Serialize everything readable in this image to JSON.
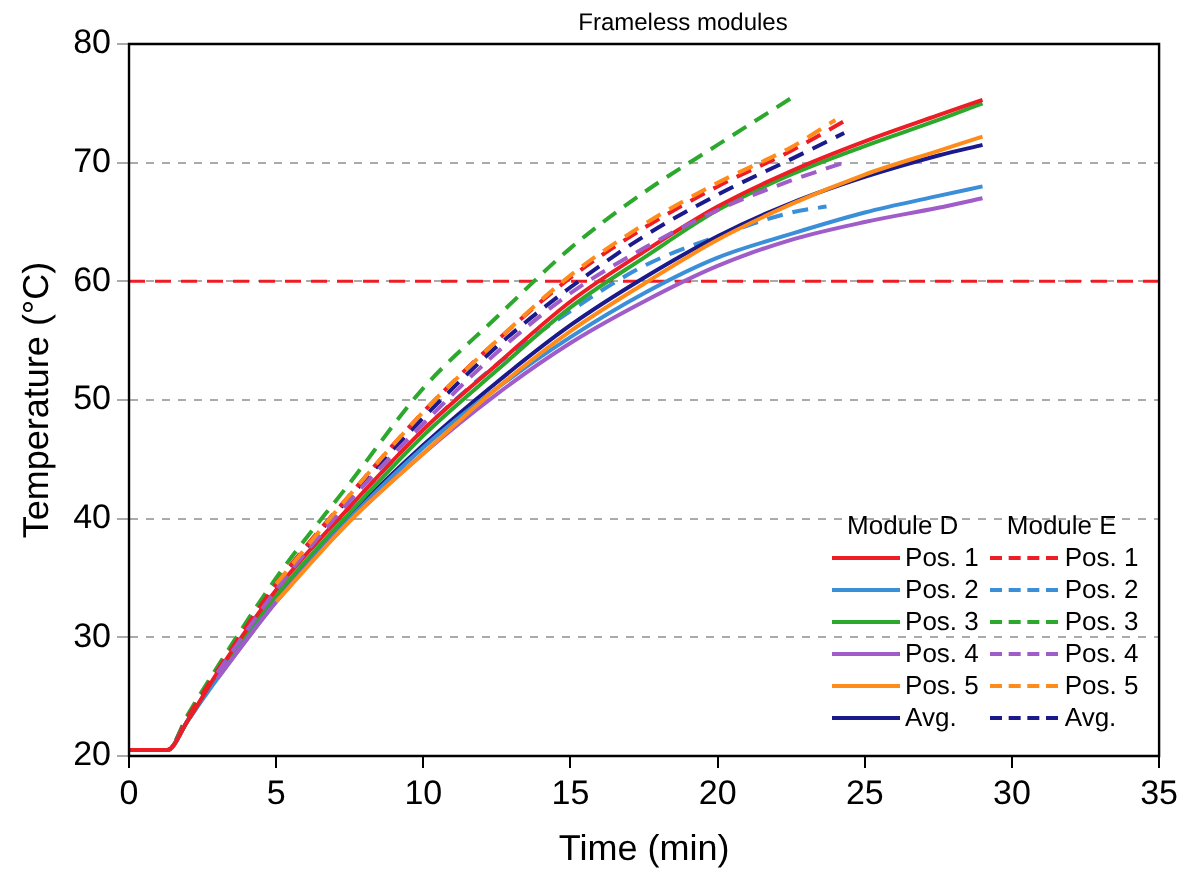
{
  "chart_data": {
    "type": "line",
    "title": "Frameless modules",
    "xlabel": "Time (min)",
    "ylabel": "Temperature (°C)",
    "xlim": [
      0,
      35
    ],
    "xticks": [
      0,
      5,
      10,
      15,
      20,
      25,
      30,
      35
    ],
    "ylim": [
      20,
      80
    ],
    "yticks": [
      20,
      30,
      40,
      50,
      60,
      70,
      80
    ],
    "grid": "y",
    "legend": "bottom right",
    "annotations": [
      "Module D",
      "Module E"
    ],
    "ref_lines": [
      {
        "axis": "y",
        "value": 60,
        "color": "#ee1c25",
        "line_style": "dashed"
      }
    ],
    "series": [
      {
        "name": "Pos. 1",
        "color": "#ee1c25",
        "line_style": "solid",
        "x": [
          0,
          1.3,
          2,
          3,
          5,
          7.5,
          10,
          12.5,
          15,
          17.5,
          20,
          22.5,
          25,
          27.5,
          29
        ],
        "values": [
          20.5,
          20.5,
          23,
          27,
          34,
          41,
          47.5,
          53,
          58.3,
          62.5,
          66.3,
          69.3,
          71.8,
          74,
          75.3
        ]
      },
      {
        "name": "Pos. 2",
        "color": "#3a8fd8",
        "line_style": "solid",
        "x": [
          0,
          1.3,
          2,
          3,
          5,
          7.5,
          10,
          12.5,
          15,
          17.5,
          20,
          22.5,
          25,
          27.5,
          29
        ],
        "values": [
          20.5,
          20.5,
          23,
          26.5,
          33,
          40,
          46,
          51,
          55.3,
          59,
          62,
          64,
          65.8,
          67.2,
          68
        ]
      },
      {
        "name": "Pos. 3",
        "color": "#2ca82c",
        "line_style": "solid",
        "x": [
          0,
          1.3,
          2,
          3,
          5,
          7.5,
          10,
          12.5,
          15,
          17.5,
          20,
          22.5,
          25,
          27.5,
          29
        ],
        "values": [
          20.5,
          20.5,
          23,
          26.8,
          33.5,
          40.5,
          47,
          52.5,
          57.8,
          62,
          66,
          69,
          71.4,
          73.6,
          75
        ]
      },
      {
        "name": "Pos. 4",
        "color": "#a05cc8",
        "line_style": "solid",
        "x": [
          3,
          5,
          7.5,
          10,
          12.5,
          15,
          17.5,
          20,
          22.5,
          25,
          27.5,
          29
        ],
        "values": [
          26.5,
          33,
          39.8,
          45.5,
          50.5,
          54.8,
          58.3,
          61.3,
          63.5,
          65,
          66.2,
          67
        ]
      },
      {
        "name": "Pos. 5",
        "color": "#ff8c1a",
        "line_style": "solid",
        "x": [
          5,
          7.5,
          10,
          12.5,
          15,
          17.5,
          20,
          22.5,
          25,
          27.5,
          29
        ],
        "values": [
          33,
          39.8,
          45.5,
          51,
          55.8,
          59.8,
          63.5,
          66.5,
          69,
          71,
          72.2
        ]
      },
      {
        "name": "Avg.",
        "color": "#1a1a8c",
        "line_style": "solid",
        "x": [
          0,
          1.3,
          2,
          3,
          5,
          7.5,
          10,
          12.5,
          15,
          17.5,
          20,
          22.5,
          25,
          27.5,
          29
        ],
        "values": [
          20.5,
          20.5,
          23,
          26.7,
          33.3,
          40.2,
          46.2,
          51.5,
          56.3,
          60.3,
          63.8,
          66.6,
          68.8,
          70.6,
          71.5
        ]
      },
      {
        "name": "Pos. 1",
        "color": "#ee1c25",
        "line_style": "dashed",
        "x": [
          0,
          1.3,
          2,
          3,
          5,
          7.5,
          10,
          12.5,
          15,
          17.5,
          20,
          22.5,
          24.3
        ],
        "values": [
          20.5,
          20.5,
          23.3,
          27.2,
          34.5,
          42,
          49,
          55,
          60.3,
          64.5,
          68,
          71,
          73.5
        ]
      },
      {
        "name": "Pos. 2",
        "color": "#3a8fd8",
        "line_style": "dashed",
        "x": [
          0,
          1.3,
          2,
          3,
          5,
          7.5,
          10,
          12.5,
          15,
          17.5,
          20,
          22.5,
          23.7
        ],
        "values": [
          20.5,
          20.5,
          23.2,
          27,
          34,
          41,
          47.5,
          53,
          57.5,
          61.3,
          63.8,
          65.8,
          66.3
        ]
      },
      {
        "name": "Pos. 3",
        "color": "#2ca82c",
        "line_style": "dashed",
        "x": [
          0,
          1.3,
          2,
          3,
          5,
          7.5,
          10,
          12.5,
          15,
          17.5,
          20,
          22.6
        ],
        "values": [
          20.5,
          20.5,
          23.5,
          27.5,
          35,
          43,
          51,
          57,
          62.8,
          67.5,
          71.5,
          75.6
        ]
      },
      {
        "name": "Pos. 4",
        "color": "#a05cc8",
        "line_style": "dashed",
        "x": [
          3,
          5,
          7.5,
          10,
          12.5,
          15,
          17.5,
          20,
          22.5,
          24.3
        ],
        "values": [
          27,
          34,
          41.5,
          48,
          54,
          59,
          62.8,
          66,
          68.5,
          70
        ]
      },
      {
        "name": "Pos. 5",
        "color": "#ff8c1a",
        "line_style": "dashed",
        "x": [
          5,
          7.5,
          10,
          12.5,
          15,
          17.5,
          20,
          22.5,
          24
        ],
        "values": [
          34.5,
          42,
          49,
          55,
          60.5,
          64.8,
          68.3,
          71.3,
          73.6
        ]
      },
      {
        "name": "Avg.",
        "color": "#1a1a8c",
        "line_style": "dashed",
        "x": [
          0,
          1.3,
          2,
          3,
          5,
          7.5,
          10,
          12.5,
          15,
          17.5,
          20,
          22.5,
          24.3
        ],
        "values": [
          20.5,
          20.5,
          23.3,
          27,
          34.3,
          41.8,
          48.5,
          54.5,
          59.5,
          63.8,
          67.3,
          70.3,
          72.5
        ]
      }
    ]
  }
}
